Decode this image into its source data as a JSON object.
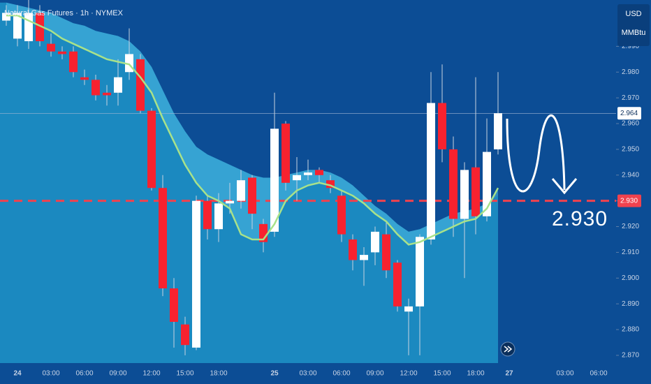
{
  "chart_data": {
    "type": "candlestick",
    "title": "Natural Gas Futures · 1h · NYMEX",
    "currency": "USD",
    "unit": "MMBtu",
    "categories": [
      null,
      "24",
      null,
      null,
      "03:00",
      null,
      null,
      "06:00",
      null,
      null,
      "09:00",
      null,
      null,
      "12:00",
      null,
      null,
      "15:00",
      null,
      null,
      "18:00",
      null,
      null,
      null,
      null,
      "25",
      null,
      null,
      "03:00",
      null,
      null,
      "06:00",
      null,
      null,
      "09:00",
      null,
      null,
      "12:00",
      null,
      null,
      "15:00",
      null,
      null,
      "18:00",
      null,
      null,
      "27",
      null,
      null,
      null,
      null,
      "03:00",
      null,
      null,
      "06:00"
    ],
    "open": [
      3.0,
      2.993,
      2.992,
      3.003,
      2.991,
      2.988,
      2.988,
      2.978,
      2.977,
      2.972,
      2.972,
      2.98,
      2.985,
      2.965,
      2.935,
      2.896,
      2.882,
      2.873,
      2.93,
      2.919,
      2.929,
      2.93,
      2.939,
      2.921,
      2.918,
      2.96,
      2.938,
      2.94,
      2.942,
      2.938,
      2.932,
      2.915,
      2.907,
      2.91,
      2.917,
      2.906,
      2.887,
      2.889,
      2.915,
      2.968,
      2.95,
      2.923,
      2.943,
      2.924,
      2.95,
      null,
      null,
      null,
      null,
      null,
      null,
      null,
      null,
      null
    ],
    "high": [
      3.006,
      3.006,
      3.008,
      3.006,
      2.995,
      2.99,
      2.99,
      2.981,
      2.979,
      2.975,
      2.985,
      2.997,
      2.987,
      2.966,
      2.94,
      2.9,
      2.885,
      2.932,
      2.932,
      2.933,
      2.937,
      2.942,
      2.94,
      2.923,
      2.972,
      2.961,
      2.947,
      2.946,
      2.943,
      2.94,
      2.934,
      2.917,
      2.912,
      2.92,
      2.922,
      2.907,
      2.892,
      2.917,
      2.98,
      2.983,
      2.955,
      2.945,
      2.978,
      2.962,
      2.98,
      null,
      null,
      null,
      null,
      null,
      null,
      null,
      null,
      null
    ],
    "low": [
      2.998,
      2.99,
      2.989,
      2.99,
      2.986,
      2.985,
      2.978,
      2.975,
      2.969,
      2.967,
      2.967,
      2.977,
      2.964,
      2.934,
      2.893,
      2.873,
      2.87,
      2.872,
      2.915,
      2.914,
      2.925,
      2.927,
      2.919,
      2.91,
      2.916,
      2.934,
      2.93,
      2.938,
      2.937,
      2.933,
      2.914,
      2.903,
      2.897,
      2.905,
      2.9,
      2.887,
      2.87,
      2.87,
      2.913,
      2.945,
      2.916,
      2.9,
      2.917,
      2.922,
      2.948,
      null,
      null,
      null,
      null,
      null,
      null,
      null,
      null,
      null
    ],
    "close": [
      3.003,
      3.003,
      3.003,
      2.992,
      2.988,
      2.987,
      2.98,
      2.977,
      2.971,
      2.971,
      2.978,
      2.987,
      2.965,
      2.935,
      2.896,
      2.883,
      2.874,
      2.93,
      2.919,
      2.929,
      2.93,
      2.938,
      2.925,
      2.914,
      2.958,
      2.937,
      2.94,
      2.941,
      2.94,
      2.935,
      2.917,
      2.907,
      2.909,
      2.918,
      2.903,
      2.889,
      2.889,
      2.916,
      2.968,
      2.95,
      2.923,
      2.942,
      2.924,
      2.949,
      2.964,
      null,
      null,
      null,
      null,
      null,
      null,
      null,
      null,
      null
    ],
    "up_color": "#ffffff",
    "down_color": "#f7222f",
    "ma": {
      "color": "#a8e28a",
      "values": [
        3.002,
        3.002,
        3.0,
        2.998,
        2.996,
        2.993,
        2.991,
        2.989,
        2.987,
        2.985,
        2.984,
        2.983,
        2.978,
        2.972,
        2.962,
        2.953,
        2.944,
        2.937,
        2.932,
        2.93,
        2.927,
        2.917,
        2.915,
        2.915,
        2.921,
        2.93,
        2.934,
        2.936,
        2.937,
        2.936,
        2.934,
        2.932,
        2.929,
        2.925,
        2.922,
        2.917,
        2.913,
        2.914,
        2.916,
        2.918,
        2.92,
        2.922,
        2.923,
        2.927,
        2.935,
        null,
        null,
        null,
        null,
        null,
        null,
        null,
        null,
        null
      ]
    },
    "band": {
      "color": "#1f94c8",
      "values": [
        3.007,
        3.006,
        3.005,
        3.004,
        3.003,
        3.001,
        2.999,
        2.998,
        2.996,
        2.995,
        2.994,
        2.992,
        2.988,
        2.982,
        2.973,
        2.964,
        2.957,
        2.951,
        2.948,
        2.946,
        2.944,
        2.942,
        2.94,
        2.939,
        2.939,
        2.94,
        2.941,
        2.942,
        2.942,
        2.941,
        2.939,
        2.936,
        2.932,
        2.928,
        2.925,
        2.921,
        2.918,
        2.919,
        2.921,
        2.923,
        2.925,
        2.926,
        2.927,
        2.929,
        2.932,
        null,
        null,
        null,
        null,
        null,
        null,
        null,
        null,
        null
      ]
    },
    "ylim": [
      2.867,
      3.008
    ],
    "yticks": [
      {
        "value": 2.87,
        "label": "2.870"
      },
      {
        "value": 2.88,
        "label": "2.880"
      },
      {
        "value": 2.89,
        "label": "2.890"
      },
      {
        "value": 2.9,
        "label": "2.900"
      },
      {
        "value": 2.91,
        "label": "2.910"
      },
      {
        "value": 2.92,
        "label": "2.920"
      },
      {
        "value": 2.93,
        "label": "2.930"
      },
      {
        "value": 2.94,
        "label": "2.940"
      },
      {
        "value": 2.95,
        "label": "2.950"
      },
      {
        "value": 2.96,
        "label": "2.960"
      },
      {
        "value": 2.97,
        "label": "2.970"
      },
      {
        "value": 2.98,
        "label": "2.980"
      },
      {
        "value": 2.99,
        "label": "2.990"
      }
    ],
    "last_price": {
      "value": 2.964,
      "label": "2.964"
    },
    "target": {
      "value": 2.93,
      "label": "2.930"
    }
  }
}
